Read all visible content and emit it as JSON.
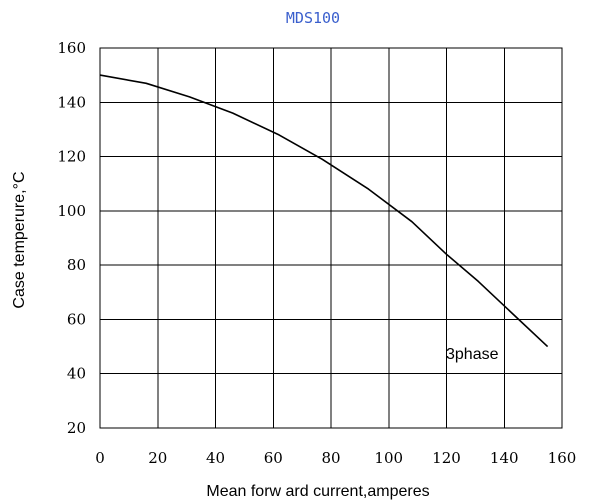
{
  "chart_data": {
    "type": "line",
    "title": "MDS100",
    "xlabel": "Mean forw ard current,amperes",
    "ylabel": "Case temperure,°C",
    "xlim": [
      0,
      160
    ],
    "ylim": [
      20,
      160
    ],
    "x_ticks": [
      0,
      20,
      40,
      60,
      80,
      100,
      120,
      140,
      160
    ],
    "y_ticks": [
      20,
      40,
      60,
      80,
      100,
      120,
      140,
      160
    ],
    "grid": true,
    "annotation": "3phase",
    "colors": {
      "title": "#3a5fcd",
      "line": "#000000"
    },
    "series": [
      {
        "x": [
          0,
          16,
          31,
          46,
          62,
          77,
          93,
          108,
          120,
          131,
          143,
          155
        ],
        "y": [
          150,
          147,
          142,
          136,
          128,
          119,
          108,
          96,
          84,
          74,
          62,
          50
        ]
      }
    ]
  }
}
